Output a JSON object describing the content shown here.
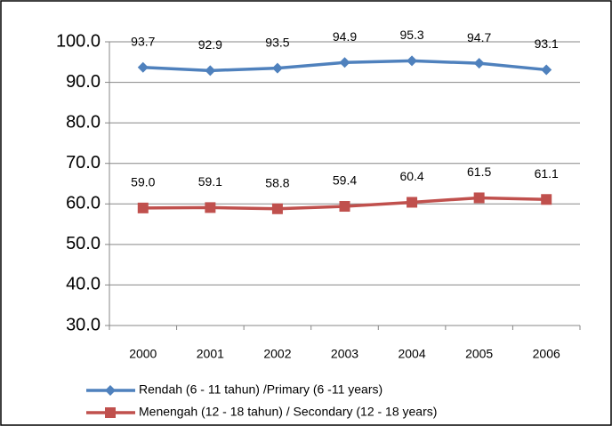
{
  "chart_data": {
    "type": "line",
    "categories": [
      "2000",
      "2001",
      "2002",
      "2003",
      "2004",
      "2005",
      "2006"
    ],
    "series": [
      {
        "name": "Rendah (6 - 11 tahun) /Primary (6 -11 years)",
        "color": "#4f81bd",
        "marker": "diamond",
        "values": [
          93.7,
          92.9,
          93.5,
          94.9,
          95.3,
          94.7,
          93.1
        ],
        "value_labels": [
          "93.7",
          "92.9",
          "93.5",
          "94.9",
          "95.3",
          "94.7",
          "93.1"
        ]
      },
      {
        "name": "Menengah (12 - 18 tahun) / Secondary (12 - 18 years)",
        "color": "#c0504d",
        "marker": "square",
        "values": [
          59.0,
          59.1,
          58.8,
          59.4,
          60.4,
          61.5,
          61.1
        ],
        "value_labels": [
          "59.0",
          "59.1",
          "58.8",
          "59.4",
          "60.4",
          "61.5",
          "61.1"
        ]
      }
    ],
    "ylim": [
      30,
      100
    ],
    "yticks": [
      {
        "value": 30,
        "label": "30.0"
      },
      {
        "value": 40,
        "label": "40.0"
      },
      {
        "value": 50,
        "label": "50.0"
      },
      {
        "value": 60,
        "label": "60.0"
      },
      {
        "value": 70,
        "label": "70.0"
      },
      {
        "value": 80,
        "label": "80.0"
      },
      {
        "value": 90,
        "label": "90.0"
      },
      {
        "value": 100,
        "label": "100.0"
      }
    ],
    "grid": true,
    "legend": "bottom"
  }
}
